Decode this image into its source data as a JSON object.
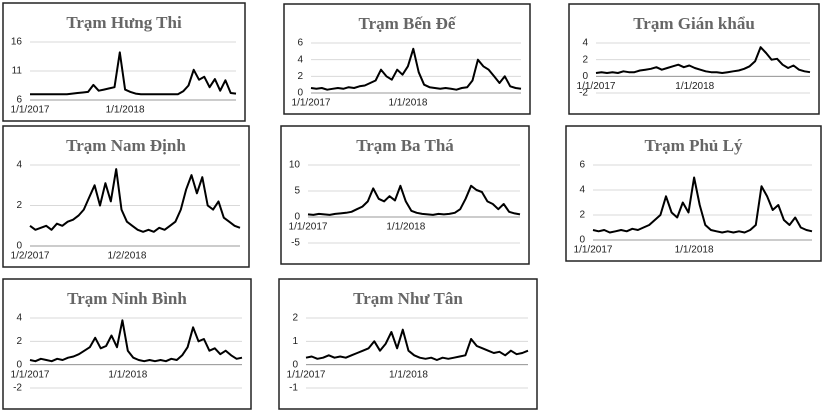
{
  "chart_data": [
    {
      "type": "line",
      "title": "Trạm Hưng Thi",
      "grid": true,
      "ylim": [
        6,
        16
      ],
      "yticks": [
        6,
        11,
        16
      ],
      "categories": [
        "1/1/2017",
        null,
        null,
        null,
        null,
        null,
        null,
        null,
        null,
        null,
        null,
        null,
        null,
        null,
        null,
        null,
        null,
        null,
        "1/1/2018",
        null,
        null,
        null,
        null,
        null,
        null,
        null,
        null,
        null,
        null,
        null,
        null,
        null,
        null,
        null,
        null,
        null,
        null,
        null,
        null,
        null
      ],
      "series": [
        {
          "color": "#000000",
          "values": [
            7,
            7,
            7,
            7,
            7,
            7,
            7,
            7,
            7.1,
            7.2,
            7.3,
            7.4,
            8.6,
            7.6,
            7.8,
            8,
            8.2,
            14.2,
            7.8,
            7.4,
            7.1,
            7,
            7,
            7,
            7,
            7,
            7,
            7,
            7,
            7.5,
            8.5,
            11.2,
            9.5,
            10,
            8.2,
            9.6,
            7.6,
            9.4,
            7.2,
            7.1
          ]
        }
      ]
    },
    {
      "type": "line",
      "title": "Trạm Bến Đế",
      "grid": true,
      "ylim": [
        0,
        6
      ],
      "yticks": [
        0,
        2,
        4,
        6
      ],
      "categories": [
        "1/1/2017",
        null,
        null,
        null,
        null,
        null,
        null,
        null,
        null,
        null,
        null,
        null,
        null,
        null,
        null,
        null,
        null,
        null,
        "1/1/2018",
        null,
        null,
        null,
        null,
        null,
        null,
        null,
        null,
        null,
        null,
        null,
        null,
        null,
        null,
        null,
        null,
        null,
        null,
        null,
        null,
        null
      ],
      "series": [
        {
          "color": "#000000",
          "values": [
            0.6,
            0.5,
            0.6,
            0.4,
            0.5,
            0.6,
            0.5,
            0.7,
            0.6,
            0.8,
            0.9,
            1.2,
            1.5,
            2.8,
            2.0,
            1.6,
            2.8,
            2.2,
            3.2,
            5.3,
            2.5,
            1.0,
            0.7,
            0.6,
            0.5,
            0.6,
            0.5,
            0.4,
            0.6,
            0.7,
            1.5,
            4.0,
            3.2,
            2.8,
            2.0,
            1.2,
            2.0,
            0.8,
            0.6,
            0.5
          ]
        }
      ]
    },
    {
      "type": "line",
      "title": "Trạm Gián khẩu",
      "grid": true,
      "ylim": [
        -2,
        4
      ],
      "yticks": [
        -2,
        0,
        2,
        4
      ],
      "categories": [
        "1/1/2017",
        null,
        null,
        null,
        null,
        null,
        null,
        null,
        null,
        null,
        null,
        null,
        null,
        null,
        null,
        null,
        null,
        null,
        "1/1/2018",
        null,
        null,
        null,
        null,
        null,
        null,
        null,
        null,
        null,
        null,
        null,
        null,
        null,
        null,
        null,
        null,
        null,
        null,
        null,
        null,
        null
      ],
      "series": [
        {
          "color": "#000000",
          "values": [
            0.4,
            0.5,
            0.4,
            0.5,
            0.4,
            0.6,
            0.5,
            0.5,
            0.7,
            0.8,
            0.9,
            1.1,
            0.8,
            1.0,
            1.2,
            1.4,
            1.1,
            1.3,
            1.0,
            0.8,
            0.6,
            0.5,
            0.5,
            0.4,
            0.5,
            0.6,
            0.7,
            0.9,
            1.2,
            1.8,
            3.5,
            2.8,
            2.0,
            2.1,
            1.4,
            1.0,
            1.3,
            0.8,
            0.6,
            0.5
          ]
        }
      ]
    },
    {
      "type": "line",
      "title": "Trạm Nam Định",
      "grid": true,
      "ylim": [
        0,
        4
      ],
      "yticks": [
        0,
        2,
        4
      ],
      "categories": [
        "1/2/2017",
        null,
        null,
        null,
        null,
        null,
        null,
        null,
        null,
        null,
        null,
        null,
        null,
        null,
        null,
        null,
        null,
        null,
        "1/2/2018",
        null,
        null,
        null,
        null,
        null,
        null,
        null,
        null,
        null,
        null,
        null,
        null,
        null,
        null,
        null,
        null,
        null,
        null,
        null,
        null,
        null
      ],
      "series": [
        {
          "color": "#000000",
          "values": [
            1.0,
            0.8,
            0.9,
            1.0,
            0.8,
            1.1,
            1.0,
            1.2,
            1.3,
            1.5,
            1.8,
            2.4,
            3.0,
            2.0,
            3.1,
            2.2,
            3.8,
            1.8,
            1.2,
            1.0,
            0.8,
            0.7,
            0.8,
            0.7,
            0.9,
            0.8,
            1.0,
            1.2,
            1.8,
            2.8,
            3.5,
            2.6,
            3.4,
            2.0,
            1.8,
            2.2,
            1.4,
            1.2,
            1.0,
            0.9
          ]
        }
      ]
    },
    {
      "type": "line",
      "title": "Trạm Ba Thá",
      "grid": true,
      "ylim": [
        -5,
        10
      ],
      "yticks": [
        -5,
        0,
        5,
        10
      ],
      "categories": [
        "1/1/2017",
        null,
        null,
        null,
        null,
        null,
        null,
        null,
        null,
        null,
        null,
        null,
        null,
        null,
        null,
        null,
        null,
        null,
        "1/1/2018",
        null,
        null,
        null,
        null,
        null,
        null,
        null,
        null,
        null,
        null,
        null,
        null,
        null,
        null,
        null,
        null,
        null,
        null,
        null,
        null,
        null
      ],
      "series": [
        {
          "color": "#000000",
          "values": [
            0.5,
            0.4,
            0.6,
            0.5,
            0.4,
            0.6,
            0.7,
            0.8,
            1.0,
            1.5,
            2.0,
            3.0,
            5.5,
            3.5,
            3.0,
            4.0,
            3.2,
            6.0,
            3.0,
            1.2,
            0.8,
            0.6,
            0.5,
            0.4,
            0.6,
            0.5,
            0.6,
            0.8,
            1.5,
            3.5,
            6.0,
            5.2,
            4.8,
            3.0,
            2.5,
            1.5,
            2.5,
            1.0,
            0.7,
            0.5
          ]
        }
      ]
    },
    {
      "type": "line",
      "title": "Trạm Phủ Lý",
      "grid": true,
      "ylim": [
        0,
        6
      ],
      "yticks": [
        0,
        2,
        4,
        6
      ],
      "categories": [
        "1/1/2017",
        null,
        null,
        null,
        null,
        null,
        null,
        null,
        null,
        null,
        null,
        null,
        null,
        null,
        null,
        null,
        null,
        null,
        "1/1/2018",
        null,
        null,
        null,
        null,
        null,
        null,
        null,
        null,
        null,
        null,
        null,
        null,
        null,
        null,
        null,
        null,
        null,
        null,
        null,
        null,
        null
      ],
      "series": [
        {
          "color": "#000000",
          "values": [
            0.8,
            0.7,
            0.8,
            0.6,
            0.7,
            0.8,
            0.7,
            0.9,
            0.8,
            1.0,
            1.2,
            1.6,
            2.0,
            3.5,
            2.2,
            1.8,
            3.0,
            2.2,
            5.0,
            2.8,
            1.2,
            0.8,
            0.7,
            0.6,
            0.7,
            0.6,
            0.7,
            0.6,
            0.8,
            1.2,
            4.3,
            3.5,
            2.4,
            2.8,
            1.6,
            1.2,
            1.8,
            1.0,
            0.8,
            0.7
          ]
        }
      ]
    },
    {
      "type": "line",
      "title": "Trạm Ninh Bình",
      "grid": true,
      "ylim": [
        -2,
        4
      ],
      "yticks": [
        -2,
        0,
        2,
        4
      ],
      "categories": [
        "1/1/2017",
        null,
        null,
        null,
        null,
        null,
        null,
        null,
        null,
        null,
        null,
        null,
        null,
        null,
        null,
        null,
        null,
        null,
        "1/1/2018",
        null,
        null,
        null,
        null,
        null,
        null,
        null,
        null,
        null,
        null,
        null,
        null,
        null,
        null,
        null,
        null,
        null,
        null,
        null,
        null,
        null
      ],
      "series": [
        {
          "color": "#000000",
          "values": [
            0.4,
            0.3,
            0.5,
            0.4,
            0.3,
            0.5,
            0.4,
            0.6,
            0.7,
            0.9,
            1.2,
            1.5,
            2.3,
            1.4,
            1.6,
            2.5,
            1.5,
            3.8,
            1.2,
            0.6,
            0.4,
            0.3,
            0.4,
            0.3,
            0.4,
            0.3,
            0.5,
            0.4,
            0.8,
            1.5,
            3.2,
            2.0,
            2.2,
            1.2,
            1.4,
            0.9,
            1.2,
            0.8,
            0.5,
            0.6
          ]
        }
      ]
    },
    {
      "type": "line",
      "title": "Trạm Như Tân",
      "grid": true,
      "ylim": [
        -1,
        2
      ],
      "yticks": [
        -1,
        0,
        1,
        2
      ],
      "categories": [
        "1/1/2017",
        null,
        null,
        null,
        null,
        null,
        null,
        null,
        null,
        null,
        null,
        null,
        null,
        null,
        null,
        null,
        null,
        null,
        "1/1/2018",
        null,
        null,
        null,
        null,
        null,
        null,
        null,
        null,
        null,
        null,
        null,
        null,
        null,
        null,
        null,
        null,
        null,
        null,
        null,
        null,
        null
      ],
      "series": [
        {
          "color": "#000000",
          "values": [
            0.3,
            0.35,
            0.25,
            0.3,
            0.4,
            0.3,
            0.35,
            0.3,
            0.4,
            0.5,
            0.6,
            0.7,
            1.0,
            0.6,
            0.9,
            1.4,
            0.7,
            1.5,
            0.6,
            0.4,
            0.3,
            0.25,
            0.3,
            0.2,
            0.3,
            0.25,
            0.3,
            0.35,
            0.4,
            1.1,
            0.8,
            0.7,
            0.6,
            0.5,
            0.55,
            0.4,
            0.6,
            0.45,
            0.5,
            0.6
          ]
        }
      ]
    }
  ]
}
